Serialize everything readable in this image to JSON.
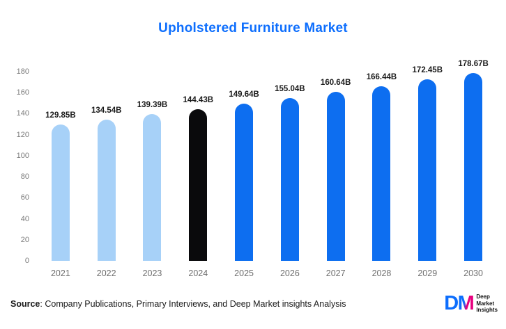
{
  "chart_data": {
    "type": "bar",
    "title": "Upholstered Furniture Market",
    "categories": [
      "2021",
      "2022",
      "2023",
      "2024",
      "2025",
      "2026",
      "2027",
      "2028",
      "2029",
      "2030"
    ],
    "values": [
      129.85,
      134.54,
      139.39,
      144.43,
      149.64,
      155.04,
      160.64,
      166.44,
      172.45,
      178.67
    ],
    "labels": [
      "129.85B",
      "134.54B",
      "139.39B",
      "144.43B",
      "149.64B",
      "155.04B",
      "160.64B",
      "166.44B",
      "172.45B",
      "178.67B"
    ],
    "bar_colors": [
      "#a7d1f8",
      "#a7d1f8",
      "#a7d1f8",
      "#0a0a0c",
      "#0d6ef0",
      "#0d6ef0",
      "#0d6ef0",
      "#0d6ef0",
      "#0d6ef0",
      "#0d6ef0"
    ],
    "xlabel": "",
    "ylabel": "",
    "ylim": [
      0,
      180
    ],
    "yticks": [
      0,
      20,
      40,
      60,
      80,
      100,
      120,
      140,
      160,
      180
    ],
    "grid": false,
    "legend": false
  },
  "footer": {
    "source_label": "Source",
    "source_text": ": Company Publications, Primary Interviews, and Deep Market insights Analysis"
  },
  "logo": {
    "monogram_d": "D",
    "monogram_m": "M",
    "text_lines": [
      "Deep",
      "Market",
      "Insights"
    ]
  },
  "colors": {
    "title": "#0d6efd",
    "light_bar": "#a7d1f8",
    "dark_bar": "#0a0a0c",
    "blue_bar": "#0d6ef0",
    "axis_text": "#6e6e6e",
    "value_label_text": "#1b1b1b",
    "logo_blue": "#0d6efd",
    "logo_pink": "#e6007e"
  }
}
